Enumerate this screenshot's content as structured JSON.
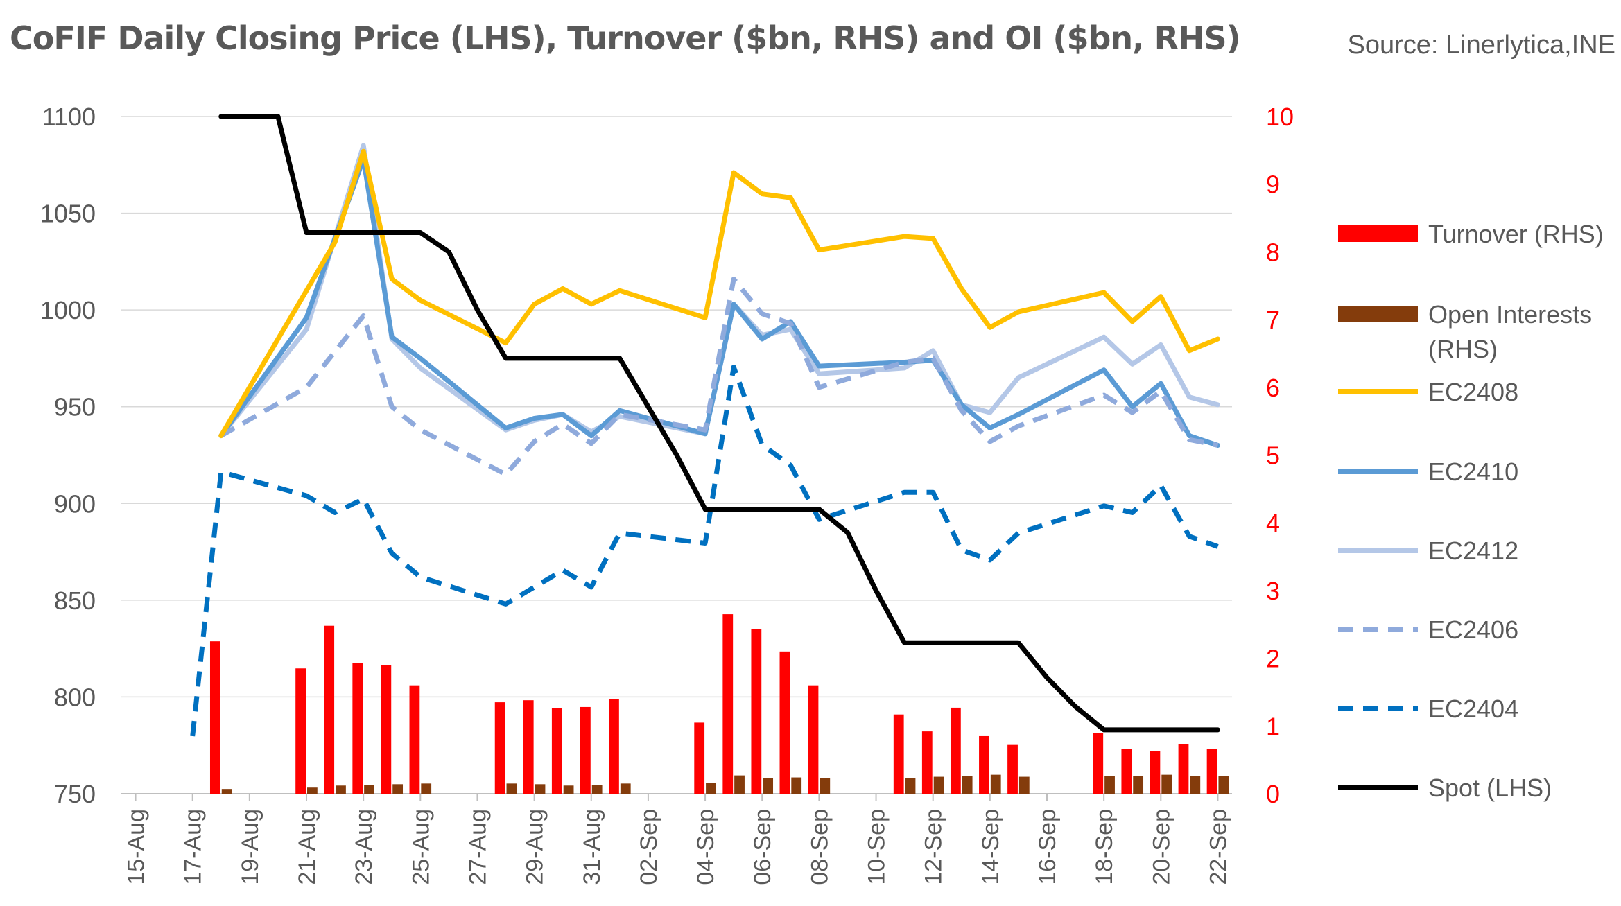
{
  "chart_data": {
    "type": "bar+line",
    "title": "CoFIF Daily Closing Price (LHS), Turnover ($bn, RHS) and OI ($bn, RHS)",
    "source": "Source: Linerlytica,INE",
    "colors": {
      "turnover": "#ff0000",
      "open_interest": "#843c0c",
      "EC2408": "#ffc000",
      "EC2410": "#5b9bd5",
      "EC2412": "#b4c7e7",
      "EC2406": "#8faadc",
      "EC2404": "#0070c0",
      "spot": "#000000",
      "axis_text": "#595959",
      "right_axis_text": "#ff0000"
    },
    "left_axis": {
      "min": 750,
      "max": 1100,
      "ticks": [
        "750",
        "800",
        "850",
        "900",
        "950",
        "1000",
        "1050",
        "1100"
      ]
    },
    "right_axis": {
      "min": 0,
      "max": 10,
      "ticks": [
        "0",
        "1",
        "2",
        "3",
        "4",
        "5",
        "6",
        "7",
        "8",
        "9",
        "10"
      ]
    },
    "x_range": [
      0,
      38
    ],
    "x_ticks": [
      {
        "i": 0,
        "label": "15-Aug"
      },
      {
        "i": 2,
        "label": "17-Aug"
      },
      {
        "i": 4,
        "label": "19-Aug"
      },
      {
        "i": 6,
        "label": "21-Aug"
      },
      {
        "i": 8,
        "label": "23-Aug"
      },
      {
        "i": 10,
        "label": "25-Aug"
      },
      {
        "i": 12,
        "label": "27-Aug"
      },
      {
        "i": 14,
        "label": "29-Aug"
      },
      {
        "i": 16,
        "label": "31-Aug"
      },
      {
        "i": 18,
        "label": "02-Sep"
      },
      {
        "i": 20,
        "label": "04-Sep"
      },
      {
        "i": 22,
        "label": "06-Sep"
      },
      {
        "i": 24,
        "label": "08-Sep"
      },
      {
        "i": 26,
        "label": "10-Sep"
      },
      {
        "i": 28,
        "label": "12-Sep"
      },
      {
        "i": 30,
        "label": "14-Sep"
      },
      {
        "i": 32,
        "label": "16-Sep"
      },
      {
        "i": 34,
        "label": "18-Sep"
      },
      {
        "i": 36,
        "label": "20-Sep"
      },
      {
        "i": 38,
        "label": "22-Sep"
      }
    ],
    "bars": [
      {
        "x": 3,
        "turnover": 2.25,
        "oi": 0.07
      },
      {
        "x": 6,
        "turnover": 1.85,
        "oi": 0.09
      },
      {
        "x": 7,
        "turnover": 2.48,
        "oi": 0.12
      },
      {
        "x": 8,
        "turnover": 1.93,
        "oi": 0.13
      },
      {
        "x": 9,
        "turnover": 1.9,
        "oi": 0.14
      },
      {
        "x": 10,
        "turnover": 1.6,
        "oi": 0.15
      },
      {
        "x": 13,
        "turnover": 1.35,
        "oi": 0.15
      },
      {
        "x": 14,
        "turnover": 1.38,
        "oi": 0.14
      },
      {
        "x": 15,
        "turnover": 1.26,
        "oi": 0.12
      },
      {
        "x": 16,
        "turnover": 1.28,
        "oi": 0.13
      },
      {
        "x": 17,
        "turnover": 1.4,
        "oi": 0.15
      },
      {
        "x": 20,
        "turnover": 1.05,
        "oi": 0.16
      },
      {
        "x": 21,
        "turnover": 2.65,
        "oi": 0.27
      },
      {
        "x": 22,
        "turnover": 2.43,
        "oi": 0.23
      },
      {
        "x": 23,
        "turnover": 2.1,
        "oi": 0.24
      },
      {
        "x": 24,
        "turnover": 1.6,
        "oi": 0.23
      },
      {
        "x": 27,
        "turnover": 1.17,
        "oi": 0.23
      },
      {
        "x": 28,
        "turnover": 0.92,
        "oi": 0.25
      },
      {
        "x": 29,
        "turnover": 1.27,
        "oi": 0.26
      },
      {
        "x": 30,
        "turnover": 0.85,
        "oi": 0.28
      },
      {
        "x": 31,
        "turnover": 0.72,
        "oi": 0.25
      },
      {
        "x": 34,
        "turnover": 0.9,
        "oi": 0.26
      },
      {
        "x": 35,
        "turnover": 0.66,
        "oi": 0.26
      },
      {
        "x": 36,
        "turnover": 0.63,
        "oi": 0.28
      },
      {
        "x": 37,
        "turnover": 0.73,
        "oi": 0.26
      },
      {
        "x": 38,
        "turnover": 0.66,
        "oi": 0.26
      }
    ],
    "series": [
      {
        "name": "EC2408",
        "axis": "left",
        "style": "solid",
        "x": [
          3,
          7,
          8,
          9,
          10,
          13,
          14,
          15,
          16,
          17,
          20,
          21,
          22,
          23,
          24,
          27,
          28,
          29,
          30,
          31,
          34,
          35,
          36,
          37,
          38
        ],
        "y": [
          935,
          1035,
          1082,
          1016,
          1005,
          983,
          1003,
          1011,
          1003,
          1010,
          996,
          1071,
          1060,
          1058,
          1031,
          1038,
          1037,
          1011,
          991,
          999,
          1009,
          994,
          1007,
          979,
          985
        ]
      },
      {
        "name": "EC2410",
        "axis": "left",
        "style": "solid",
        "x": [
          3,
          6,
          8,
          9,
          10,
          13,
          14,
          15,
          16,
          17,
          20,
          21,
          22,
          23,
          24,
          27,
          28,
          29,
          30,
          31,
          34,
          35,
          36,
          37,
          38
        ],
        "y": [
          935,
          996,
          1078,
          986,
          975,
          939,
          944,
          946,
          935,
          948,
          936,
          1003,
          985,
          994,
          971,
          973,
          974,
          951,
          939,
          946,
          969,
          950,
          962,
          935,
          930
        ]
      },
      {
        "name": "EC2412",
        "axis": "left",
        "style": "solid",
        "x": [
          3,
          6,
          8,
          9,
          10,
          13,
          14,
          15,
          16,
          17,
          20,
          21,
          22,
          23,
          24,
          27,
          28,
          29,
          30,
          31,
          34,
          35,
          36,
          37,
          38
        ],
        "y": [
          935,
          990,
          1085,
          985,
          970,
          938,
          943,
          946,
          937,
          945,
          936,
          1003,
          987,
          990,
          967,
          970,
          979,
          951,
          947,
          965,
          986,
          972,
          982,
          955,
          951
        ]
      },
      {
        "name": "EC2406",
        "axis": "left",
        "style": "dashed",
        "x": [
          3,
          6,
          8,
          9,
          10,
          13,
          14,
          15,
          16,
          17,
          20,
          21,
          22,
          23,
          24,
          27,
          28,
          29,
          30,
          31,
          34,
          35,
          36,
          37,
          38
        ],
        "y": [
          935,
          960,
          997,
          950,
          938,
          915,
          932,
          941,
          931,
          946,
          938,
          1016,
          998,
          993,
          960,
          973,
          975,
          948,
          932,
          940,
          956,
          947,
          958,
          933,
          930
        ]
      },
      {
        "name": "EC2404",
        "axis": "right",
        "style": "dashed",
        "x": [
          2,
          3,
          6,
          7,
          8,
          9,
          10,
          13,
          14,
          15,
          16,
          17,
          20,
          21,
          22,
          23,
          24,
          27,
          28,
          29,
          30,
          31,
          34,
          35,
          36,
          37,
          38
        ],
        "y": [
          0.85,
          4.75,
          4.4,
          4.15,
          4.35,
          3.55,
          3.2,
          2.8,
          3.05,
          3.3,
          3.05,
          3.85,
          3.7,
          6.3,
          5.15,
          4.85,
          4.05,
          4.45,
          4.45,
          3.6,
          3.45,
          3.85,
          4.25,
          4.15,
          4.55,
          3.8,
          3.65
        ]
      },
      {
        "name": "Spot (LHS)",
        "axis": "left",
        "style": "solid",
        "x": [
          3,
          4,
          5,
          6,
          7,
          8,
          9,
          10,
          11,
          12,
          13,
          14,
          15,
          16,
          17,
          18,
          19,
          20,
          21,
          22,
          23,
          24,
          25,
          26,
          27,
          28,
          29,
          30,
          31,
          32,
          33,
          34,
          35,
          36,
          37,
          38
        ],
        "y": [
          1100,
          1100,
          1100,
          1040,
          1040,
          1040,
          1040,
          1040,
          1030,
          1000,
          975,
          975,
          975,
          975,
          975,
          950,
          925,
          897,
          897,
          897,
          897,
          897,
          885,
          855,
          828,
          828,
          828,
          828,
          828,
          810,
          795,
          783,
          783,
          783,
          783,
          783
        ]
      }
    ],
    "legend": [
      {
        "key": "turnover",
        "label": "Turnover (RHS)",
        "kind": "bar"
      },
      {
        "key": "open_interest",
        "label": "Open Interests",
        "label2": "(RHS)",
        "kind": "bar"
      },
      {
        "key": "EC2408",
        "label": "EC2408",
        "kind": "line",
        "style": "solid"
      },
      {
        "key": "EC2410",
        "label": "EC2410",
        "kind": "line",
        "style": "solid"
      },
      {
        "key": "EC2412",
        "label": "EC2412",
        "kind": "line",
        "style": "solid"
      },
      {
        "key": "EC2406",
        "label": "EC2406",
        "kind": "line",
        "style": "dashed"
      },
      {
        "key": "EC2404",
        "label": "EC2404",
        "kind": "line",
        "style": "dashed"
      },
      {
        "key": "spot",
        "label": "Spot (LHS)",
        "kind": "line",
        "style": "solid"
      }
    ]
  }
}
